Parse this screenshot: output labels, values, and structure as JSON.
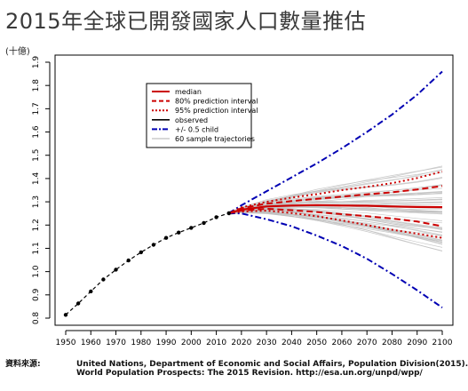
{
  "title": "2015年全球已開發國家人口數量推估",
  "unit_label": "(十億)",
  "source": {
    "label": "資料來源:",
    "line1": "United Nations, Department of Economic and Social Affairs, Population Division(2015).",
    "line2": "World Population Prospects: The 2015 Revision. http://esa.un.org/unpd/wpp/"
  },
  "colors": {
    "observed": "#000000",
    "projection": "#cc0000",
    "child_band": "#0000b3",
    "samples": "#c0c0c0",
    "axis": "#000000"
  },
  "chart_data": {
    "type": "line",
    "title": "2015年全球已開發國家人口數量推估",
    "ylabel": "(十億)",
    "xlim": [
      1950,
      2100
    ],
    "ylim": [
      0.8,
      1.9
    ],
    "x_ticks": [
      1950,
      1960,
      1970,
      1980,
      1990,
      2000,
      2010,
      2020,
      2030,
      2040,
      2050,
      2060,
      2070,
      2080,
      2090,
      2100
    ],
    "y_ticks": [
      "0.8",
      "0.9",
      "1.0",
      "1.1",
      "1.2",
      "1.3",
      "1.4",
      "1.5",
      "1.6",
      "1.7",
      "1.8",
      "1.9"
    ],
    "legend_position": "top-left",
    "legend": [
      {
        "label": "median",
        "key": "median"
      },
      {
        "label": "80% prediction interval",
        "key": "pi80"
      },
      {
        "label": "95% prediction interval",
        "key": "pi95"
      },
      {
        "label": "observed",
        "key": "observed"
      },
      {
        "label": "+/- 0.5 child",
        "key": "child"
      },
      {
        "label": "60 sample trajectories",
        "key": "samples"
      }
    ],
    "observed": {
      "x": [
        1950,
        1955,
        1960,
        1965,
        1970,
        1975,
        1980,
        1985,
        1990,
        1995,
        2000,
        2005,
        2010,
        2015
      ],
      "y": [
        0.814,
        0.863,
        0.915,
        0.966,
        1.008,
        1.048,
        1.083,
        1.115,
        1.145,
        1.168,
        1.188,
        1.209,
        1.234,
        1.251
      ]
    },
    "median": {
      "x": [
        2015,
        2020,
        2030,
        2040,
        2050,
        2060,
        2070,
        2080,
        2090,
        2100
      ],
      "y": [
        1.251,
        1.266,
        1.28,
        1.284,
        1.286,
        1.284,
        1.283,
        1.28,
        1.278,
        1.277
      ]
    },
    "pi80_upper": {
      "x": [
        2015,
        2020,
        2030,
        2040,
        2050,
        2060,
        2070,
        2080,
        2090,
        2100
      ],
      "y": [
        1.251,
        1.272,
        1.292,
        1.303,
        1.313,
        1.322,
        1.332,
        1.341,
        1.353,
        1.368
      ]
    },
    "pi80_lower": {
      "x": [
        2015,
        2020,
        2030,
        2040,
        2050,
        2060,
        2070,
        2080,
        2090,
        2100
      ],
      "y": [
        1.251,
        1.262,
        1.27,
        1.264,
        1.256,
        1.247,
        1.238,
        1.228,
        1.215,
        1.195
      ]
    },
    "pi95_upper": {
      "x": [
        2015,
        2020,
        2030,
        2040,
        2050,
        2060,
        2070,
        2080,
        2090,
        2100
      ],
      "y": [
        1.251,
        1.276,
        1.3,
        1.318,
        1.333,
        1.35,
        1.364,
        1.38,
        1.402,
        1.43
      ]
    },
    "pi95_lower": {
      "x": [
        2015,
        2020,
        2030,
        2040,
        2050,
        2060,
        2070,
        2080,
        2090,
        2100
      ],
      "y": [
        1.251,
        1.258,
        1.262,
        1.252,
        1.238,
        1.22,
        1.2,
        1.18,
        1.163,
        1.145
      ]
    },
    "child_upper": {
      "x": [
        2015,
        2020,
        2030,
        2040,
        2050,
        2060,
        2070,
        2080,
        2090,
        2100
      ],
      "y": [
        1.251,
        1.285,
        1.345,
        1.405,
        1.465,
        1.53,
        1.6,
        1.675,
        1.76,
        1.86
      ]
    },
    "child_lower": {
      "x": [
        2015,
        2020,
        2030,
        2040,
        2050,
        2060,
        2070,
        2080,
        2090,
        2100
      ],
      "y": [
        1.251,
        1.25,
        1.225,
        1.195,
        1.155,
        1.11,
        1.055,
        0.99,
        0.92,
        0.845
      ]
    },
    "samples_range": {
      "x": [
        2015,
        2100
      ],
      "upper_end": 1.5,
      "lower_end": 1.1
    },
    "grid": false
  }
}
